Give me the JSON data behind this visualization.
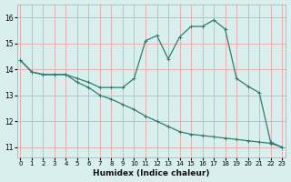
{
  "xlabel": "Humidex (Indice chaleur)",
  "background_color": "#d8efed",
  "grid_color": "#e8b0b0",
  "line_color": "#2e7d72",
  "x_ticks": [
    0,
    1,
    2,
    3,
    4,
    5,
    6,
    7,
    8,
    9,
    10,
    11,
    12,
    13,
    14,
    15,
    16,
    17,
    18,
    19,
    20,
    21,
    22,
    23
  ],
  "y_ticks": [
    11,
    12,
    13,
    14,
    15,
    16
  ],
  "ylim": [
    10.6,
    16.5
  ],
  "xlim": [
    -0.3,
    23.3
  ],
  "line1_x": [
    0,
    1,
    2,
    3,
    4,
    5,
    6,
    7,
    8,
    9,
    10,
    11,
    12,
    13,
    14,
    15,
    16,
    17,
    18,
    19,
    20,
    21,
    22,
    23
  ],
  "line1_y": [
    14.35,
    13.9,
    13.8,
    13.8,
    13.8,
    13.65,
    13.5,
    13.3,
    13.3,
    13.3,
    13.65,
    15.1,
    15.3,
    14.4,
    15.25,
    15.65,
    15.65,
    15.9,
    15.55,
    13.65,
    13.35,
    13.1,
    11.2,
    11.0
  ],
  "line2_x": [
    0,
    1,
    2,
    3,
    4,
    5,
    6,
    7,
    8,
    9,
    10,
    11,
    12,
    13,
    14,
    15,
    16,
    17,
    18,
    19,
    20,
    21,
    22,
    23
  ],
  "line2_y": [
    14.35,
    13.9,
    13.8,
    13.8,
    13.8,
    13.5,
    13.3,
    13.0,
    12.85,
    12.65,
    12.45,
    12.2,
    12.0,
    11.8,
    11.6,
    11.5,
    11.45,
    11.4,
    11.35,
    11.3,
    11.25,
    11.2,
    11.15,
    11.0
  ]
}
